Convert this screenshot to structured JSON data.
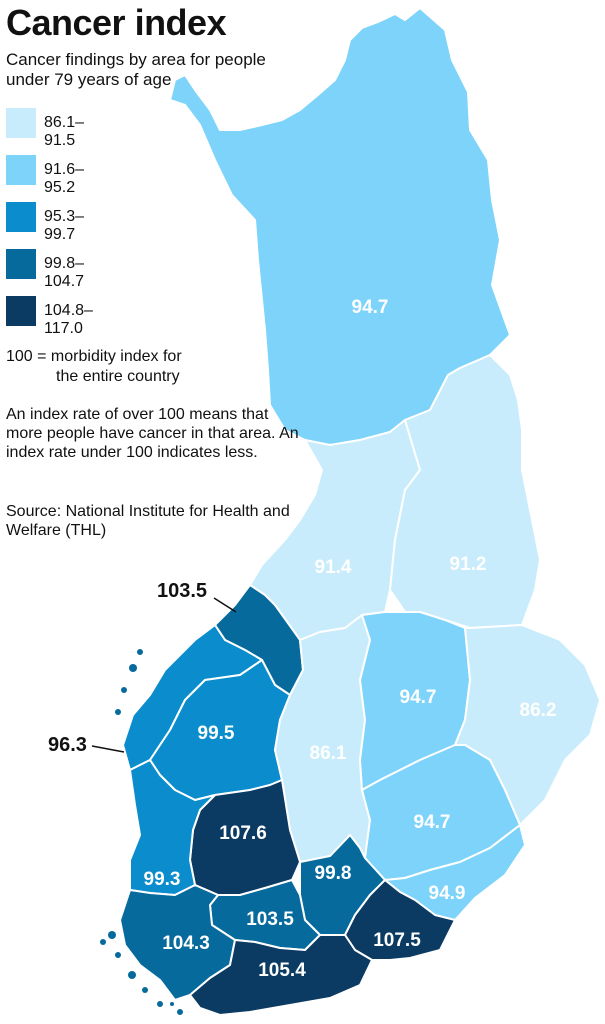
{
  "title": "Cancer index",
  "subtitle": "Cancer findings by area for people under 79 years of age",
  "legend": [
    {
      "label": "86.1–91.5",
      "color": "#c8ecfb"
    },
    {
      "label": "91.6–95.2",
      "color": "#7dd3fa"
    },
    {
      "label": "95.3–99.7",
      "color": "#0a8ccd"
    },
    {
      "label": "99.8–104.7",
      "color": "#076a9d"
    },
    {
      "label": "104.8–117.0",
      "color": "#0b3a63"
    }
  ],
  "note_index": {
    "line1": "100 = morbidity index for",
    "line2": "the entire country"
  },
  "note_text": "An index rate of over 100 means that more people have cancer in that area. An index rate under 100 indicates less.",
  "source": "Source: National Institute for Health and Welfare (THL)",
  "regions": [
    {
      "name": "lapland",
      "value": "94.7",
      "color": "#7dd3fa"
    },
    {
      "name": "north-ostrobothnia",
      "value": "91.4",
      "color": "#c8ecfb"
    },
    {
      "name": "kainuu",
      "value": "91.2",
      "color": "#c8ecfb"
    },
    {
      "name": "central-ostrobothnia",
      "value": "103.5",
      "color": "#076a9d"
    },
    {
      "name": "ostrobothnia",
      "value": "96.3",
      "color": "#0a8ccd"
    },
    {
      "name": "south-ostrobothnia",
      "value": "99.5",
      "color": "#0a8ccd"
    },
    {
      "name": "central-finland",
      "value": "86.1",
      "color": "#c8ecfb"
    },
    {
      "name": "north-savo",
      "value": "94.7",
      "color": "#7dd3fa"
    },
    {
      "name": "north-karelia",
      "value": "86.2",
      "color": "#c8ecfb"
    },
    {
      "name": "pirkanmaa",
      "value": "107.6",
      "color": "#0b3a63"
    },
    {
      "name": "south-savo",
      "value": "94.7",
      "color": "#7dd3fa"
    },
    {
      "name": "satakunta",
      "value": "99.3",
      "color": "#0a8ccd"
    },
    {
      "name": "paijat-hame",
      "value": "99.8",
      "color": "#076a9d"
    },
    {
      "name": "south-karelia",
      "value": "94.9",
      "color": "#7dd3fa"
    },
    {
      "name": "kanta-hame",
      "value": "103.5",
      "color": "#076a9d"
    },
    {
      "name": "southwest-finland",
      "value": "104.3",
      "color": "#076a9d"
    },
    {
      "name": "kymenlaakso",
      "value": "107.5",
      "color": "#0b3a63"
    },
    {
      "name": "uusimaa",
      "value": "105.4",
      "color": "#0b3a63"
    }
  ]
}
